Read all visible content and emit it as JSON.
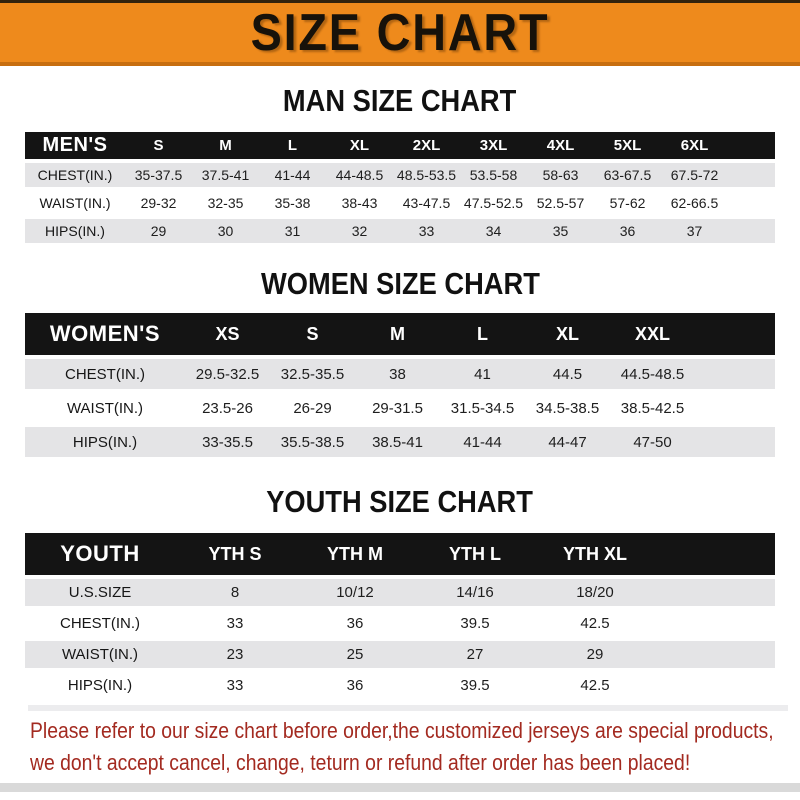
{
  "banner": {
    "title": "SIZE CHART"
  },
  "sections": [
    {
      "title": "MAN SIZE CHART",
      "table": {
        "header_label": "MEN'S",
        "columns": [
          "S",
          "M",
          "L",
          "XL",
          "2XL",
          "3XL",
          "4XL",
          "5XL",
          "6XL"
        ],
        "rows": [
          {
            "label": "CHEST(IN.)",
            "values": [
              "35-37.5",
              "37.5-41",
              "41-44",
              "44-48.5",
              "48.5-53.5",
              "53.5-58",
              "58-63",
              "63-67.5",
              "67.5-72"
            ]
          },
          {
            "label": "WAIST(IN.)",
            "values": [
              "29-32",
              "32-35",
              "35-38",
              "38-43",
              "43-47.5",
              "47.5-52.5",
              "52.5-57",
              "57-62",
              "62-66.5"
            ]
          },
          {
            "label": "HIPS(IN.)",
            "values": [
              "29",
              "30",
              "31",
              "32",
              "33",
              "34",
              "35",
              "36",
              "37"
            ]
          }
        ]
      }
    },
    {
      "title": "WOMEN SIZE CHART",
      "table": {
        "header_label": "WOMEN'S",
        "columns": [
          "XS",
          "S",
          "M",
          "L",
          "XL",
          "XXL"
        ],
        "rows": [
          {
            "label": "CHEST(IN.)",
            "values": [
              "29.5-32.5",
              "32.5-35.5",
              "38",
              "41",
              "44.5",
              "44.5-48.5"
            ]
          },
          {
            "label": "WAIST(IN.)",
            "values": [
              "23.5-26",
              "26-29",
              "29-31.5",
              "31.5-34.5",
              "34.5-38.5",
              "38.5-42.5"
            ]
          },
          {
            "label": "HIPS(IN.)",
            "values": [
              "33-35.5",
              "35.5-38.5",
              "38.5-41",
              "41-44",
              "44-47",
              "47-50"
            ]
          }
        ]
      }
    },
    {
      "title": "YOUTH SIZE CHART",
      "table": {
        "header_label": "YOUTH",
        "columns": [
          "YTH S",
          "YTH M",
          "YTH L",
          "YTH XL"
        ],
        "rows": [
          {
            "label": "U.S.SIZE",
            "values": [
              "8",
              "10/12",
              "14/16",
              "18/20"
            ]
          },
          {
            "label": "CHEST(IN.)",
            "values": [
              "33",
              "36",
              "39.5",
              "42.5"
            ]
          },
          {
            "label": "WAIST(IN.)",
            "values": [
              "23",
              "25",
              "27",
              "29"
            ]
          },
          {
            "label": "HIPS(IN.)",
            "values": [
              "33",
              "36",
              "39.5",
              "42.5"
            ]
          }
        ]
      }
    }
  ],
  "footer": {
    "line1": "Please refer to our size chart before order,the customized jerseys are special products,",
    "line2": "we don't accept cancel, change, teturn or refund after order has been placed!"
  },
  "colors": {
    "banner_orange": "#EE8A1C",
    "banner_edge_dark": "#32230D",
    "banner_edge_shadow": "#C76E10",
    "header_bar_black": "#141414",
    "stripe_gray": "#E4E4E6",
    "footer_red": "#A32A20"
  }
}
